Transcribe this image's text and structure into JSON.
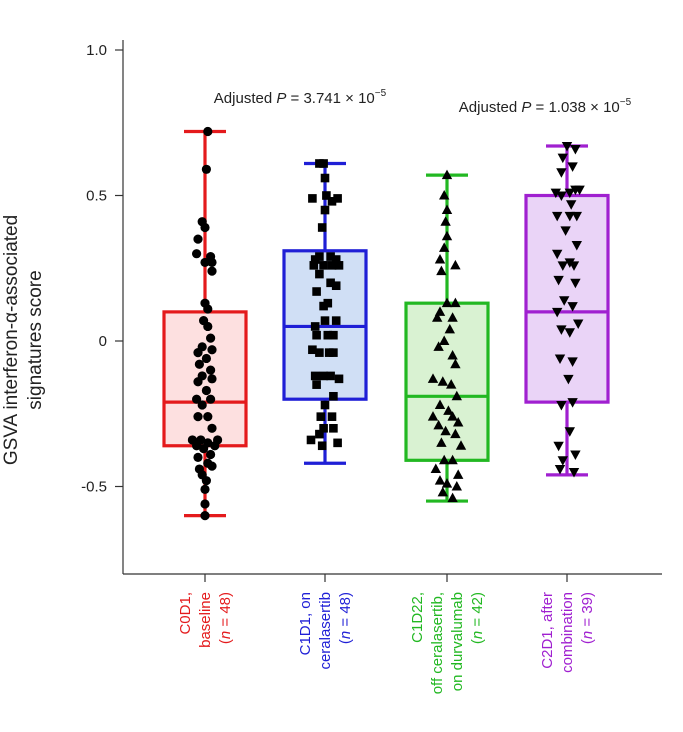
{
  "chart_data": {
    "type": "box",
    "ylabel": [
      "GSVA interferon-α-associated",
      "signatures score"
    ],
    "ylim": [
      -0.8,
      1.0
    ],
    "yticks": [
      {
        "value": 1.0,
        "label": "1.0"
      },
      {
        "value": 0.5,
        "label": "0.5"
      },
      {
        "value": 0,
        "label": "0"
      },
      {
        "value": -0.5,
        "label": "-0.5"
      }
    ],
    "annotations": [
      {
        "text": "Adjusted P = 3.741 × 10",
        "sup": "−5",
        "prefix": "Adjusted ",
        "italic": "P",
        "rest": " = 3.741 × 10",
        "x_between": [
          0,
          1
        ],
        "y": 0.81
      },
      {
        "text": "Adjusted P = 1.038 × 10",
        "sup": "−5",
        "prefix": "Adjusted ",
        "italic": "P",
        "rest": " = 1.038 × 10",
        "x_between": [
          2,
          3
        ],
        "y": 0.79
      }
    ],
    "groups": [
      {
        "name": "C0D1, baseline",
        "label_lines": [
          "C0D1,",
          "baseline",
          "(n = 48)"
        ],
        "color": "#e41a1c",
        "fill": "#fde0e0",
        "marker": "circle",
        "whisker_low": -0.6,
        "q1": -0.36,
        "median": -0.21,
        "q3": 0.1,
        "whisker_high": 0.72,
        "points": [
          [
            0.02,
            0.72
          ],
          [
            0.01,
            0.59
          ],
          [
            -0.02,
            0.41
          ],
          [
            0.0,
            0.39
          ],
          [
            -0.05,
            0.35
          ],
          [
            0.04,
            0.29
          ],
          [
            -0.06,
            0.3
          ],
          [
            0.05,
            0.27
          ],
          [
            0.0,
            0.27
          ],
          [
            0.05,
            0.24
          ],
          [
            0.0,
            0.13
          ],
          [
            0.02,
            0.11
          ],
          [
            -0.01,
            0.07
          ],
          [
            0.02,
            0.05
          ],
          [
            0.04,
            0.01
          ],
          [
            -0.02,
            -0.02
          ],
          [
            0.05,
            -0.03
          ],
          [
            -0.05,
            -0.04
          ],
          [
            0.01,
            -0.06
          ],
          [
            -0.04,
            -0.08
          ],
          [
            0.04,
            -0.1
          ],
          [
            -0.02,
            -0.12
          ],
          [
            0.05,
            -0.13
          ],
          [
            -0.05,
            -0.14
          ],
          [
            0.01,
            -0.17
          ],
          [
            0.04,
            -0.2
          ],
          [
            -0.06,
            -0.2
          ],
          [
            -0.02,
            -0.22
          ],
          [
            0.02,
            -0.26
          ],
          [
            -0.05,
            -0.26
          ],
          [
            0.05,
            -0.3
          ],
          [
            -0.09,
            -0.34
          ],
          [
            0.09,
            -0.34
          ],
          [
            -0.03,
            -0.34
          ],
          [
            0.02,
            -0.35
          ],
          [
            -0.06,
            -0.36
          ],
          [
            0.07,
            -0.36
          ],
          [
            -0.01,
            -0.37
          ],
          [
            0.04,
            -0.39
          ],
          [
            -0.05,
            -0.4
          ],
          [
            0.02,
            -0.42
          ],
          [
            -0.04,
            -0.44
          ],
          [
            0.05,
            -0.43
          ],
          [
            -0.02,
            -0.46
          ],
          [
            0.01,
            -0.48
          ],
          [
            0.0,
            -0.51
          ],
          [
            0.0,
            -0.56
          ],
          [
            0.0,
            -0.6
          ]
        ]
      },
      {
        "name": "C1D1, on ceralasertib",
        "label_lines": [
          "C1D1, on",
          "ceralasertib",
          "(n = 48)"
        ],
        "color": "#1f1fd6",
        "fill": "#d0dff5",
        "marker": "square",
        "whisker_low": -0.42,
        "q1": -0.2,
        "median": 0.05,
        "q3": 0.31,
        "whisker_high": 0.61,
        "points": [
          [
            -0.04,
            0.61
          ],
          [
            -0.01,
            0.61
          ],
          [
            0.0,
            0.56
          ],
          [
            0.01,
            0.5
          ],
          [
            -0.09,
            0.49
          ],
          [
            0.05,
            0.48
          ],
          [
            0.09,
            0.49
          ],
          [
            0.0,
            0.45
          ],
          [
            -0.02,
            0.39
          ],
          [
            -0.04,
            0.29
          ],
          [
            0.04,
            0.29
          ],
          [
            -0.07,
            0.28
          ],
          [
            0.08,
            0.28
          ],
          [
            -0.01,
            0.26
          ],
          [
            -0.08,
            0.26
          ],
          [
            0.05,
            0.26
          ],
          [
            0.1,
            0.26
          ],
          [
            -0.04,
            0.23
          ],
          [
            0.04,
            0.2
          ],
          [
            0.08,
            0.19
          ],
          [
            -0.06,
            0.17
          ],
          [
            0.02,
            0.13
          ],
          [
            -0.01,
            0.12
          ],
          [
            0.0,
            0.07
          ],
          [
            0.08,
            0.07
          ],
          [
            -0.07,
            0.05
          ],
          [
            -0.06,
            0.02
          ],
          [
            0.02,
            0.02
          ],
          [
            0.06,
            0.02
          ],
          [
            -0.09,
            -0.03
          ],
          [
            -0.04,
            -0.04
          ],
          [
            0.03,
            -0.04
          ],
          [
            0.06,
            -0.04
          ],
          [
            -0.07,
            -0.12
          ],
          [
            -0.01,
            -0.12
          ],
          [
            0.04,
            -0.12
          ],
          [
            0.1,
            -0.13
          ],
          [
            -0.06,
            -0.15
          ],
          [
            0.06,
            -0.19
          ],
          [
            0.0,
            -0.22
          ],
          [
            -0.03,
            -0.26
          ],
          [
            0.05,
            -0.26
          ],
          [
            -0.01,
            -0.3
          ],
          [
            0.06,
            -0.3
          ],
          [
            -0.04,
            -0.32
          ],
          [
            -0.1,
            -0.34
          ],
          [
            0.09,
            -0.35
          ],
          [
            -0.02,
            -0.36
          ]
        ]
      },
      {
        "name": "C1D22, off ceralasertib, on durvalumab",
        "label_lines": [
          "C1D22,",
          "off ceralasertib,",
          "on durvalumab",
          "(n = 42)"
        ],
        "color": "#22b822",
        "fill": "#d9f2d2",
        "marker": "triangle-up",
        "whisker_low": -0.55,
        "q1": -0.41,
        "median": -0.19,
        "q3": 0.13,
        "whisker_high": 0.57,
        "points": [
          [
            0.0,
            0.57
          ],
          [
            -0.02,
            0.5
          ],
          [
            0.0,
            0.45
          ],
          [
            -0.01,
            0.41
          ],
          [
            0.0,
            0.36
          ],
          [
            -0.02,
            0.32
          ],
          [
            -0.05,
            0.28
          ],
          [
            0.06,
            0.26
          ],
          [
            -0.04,
            0.24
          ],
          [
            0.0,
            0.13
          ],
          [
            0.06,
            0.13
          ],
          [
            -0.05,
            0.1
          ],
          [
            0.04,
            0.08
          ],
          [
            -0.07,
            0.08
          ],
          [
            0.02,
            0.04
          ],
          [
            -0.02,
            0.0
          ],
          [
            -0.06,
            -0.02
          ],
          [
            0.04,
            -0.05
          ],
          [
            0.06,
            -0.08
          ],
          [
            -0.1,
            -0.13
          ],
          [
            -0.03,
            -0.14
          ],
          [
            0.03,
            -0.15
          ],
          [
            0.07,
            -0.19
          ],
          [
            -0.05,
            -0.22
          ],
          [
            0.01,
            -0.24
          ],
          [
            -0.1,
            -0.26
          ],
          [
            0.04,
            -0.26
          ],
          [
            -0.06,
            -0.29
          ],
          [
            0.08,
            -0.28
          ],
          [
            -0.01,
            -0.31
          ],
          [
            0.06,
            -0.32
          ],
          [
            -0.04,
            -0.35
          ],
          [
            0.1,
            -0.36
          ],
          [
            -0.02,
            -0.41
          ],
          [
            0.04,
            -0.41
          ],
          [
            -0.08,
            -0.44
          ],
          [
            0.08,
            -0.46
          ],
          [
            -0.05,
            -0.48
          ],
          [
            0.0,
            -0.49
          ],
          [
            0.07,
            -0.5
          ],
          [
            -0.03,
            -0.52
          ],
          [
            0.04,
            -0.54
          ]
        ]
      },
      {
        "name": "C2D1, after combination",
        "label_lines": [
          "C2D1, after",
          "combination",
          "(n = 39)"
        ],
        "color": "#a020d0",
        "fill": "#ead4f7",
        "marker": "triangle-down",
        "whisker_low": -0.46,
        "q1": -0.21,
        "median": 0.1,
        "q3": 0.5,
        "whisker_high": 0.67,
        "points": [
          [
            0.0,
            0.67
          ],
          [
            0.06,
            0.66
          ],
          [
            -0.03,
            0.63
          ],
          [
            0.04,
            0.6
          ],
          [
            -0.04,
            0.58
          ],
          [
            0.06,
            0.52
          ],
          [
            -0.08,
            0.51
          ],
          [
            0.02,
            0.51
          ],
          [
            0.09,
            0.52
          ],
          [
            -0.04,
            0.5
          ],
          [
            0.03,
            0.47
          ],
          [
            0.02,
            0.43
          ],
          [
            -0.07,
            0.43
          ],
          [
            0.07,
            0.43
          ],
          [
            -0.01,
            0.38
          ],
          [
            0.07,
            0.33
          ],
          [
            -0.07,
            0.3
          ],
          [
            0.02,
            0.27
          ],
          [
            -0.03,
            0.26
          ],
          [
            0.05,
            0.26
          ],
          [
            -0.06,
            0.21
          ],
          [
            0.06,
            0.2
          ],
          [
            -0.02,
            0.14
          ],
          [
            0.04,
            0.12
          ],
          [
            -0.07,
            0.1
          ],
          [
            0.08,
            0.06
          ],
          [
            -0.04,
            0.04
          ],
          [
            0.02,
            0.03
          ],
          [
            -0.05,
            -0.06
          ],
          [
            0.04,
            -0.07
          ],
          [
            0.01,
            -0.13
          ],
          [
            -0.04,
            -0.22
          ],
          [
            0.04,
            -0.21
          ],
          [
            0.02,
            -0.31
          ],
          [
            -0.06,
            -0.36
          ],
          [
            -0.03,
            -0.41
          ],
          [
            0.06,
            -0.39
          ],
          [
            -0.05,
            -0.44
          ],
          [
            0.05,
            -0.45
          ]
        ]
      }
    ]
  }
}
